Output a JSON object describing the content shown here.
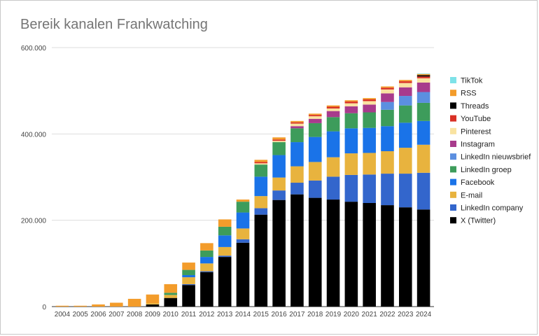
{
  "chart_data": {
    "type": "bar",
    "stacked": true,
    "title": "Bereik kanalen Frankwatching",
    "xlabel": "",
    "ylabel": "",
    "ylim": [
      0,
      600000
    ],
    "y_ticks": [
      0,
      200000,
      400000,
      600000
    ],
    "y_tick_labels": [
      "0",
      "200.000",
      "400.000",
      "600.000"
    ],
    "gridlines": true,
    "legend_position": "right",
    "categories": [
      "2004",
      "2005",
      "2006",
      "2007",
      "2008",
      "2009",
      "2010",
      "2011",
      "2012",
      "2013",
      "2014",
      "2015",
      "2016",
      "2017",
      "2018",
      "2019",
      "2020",
      "2021",
      "2022",
      "2023",
      "2024"
    ],
    "series": [
      {
        "name": "X (Twitter)",
        "color": "#000000",
        "values": [
          0,
          0,
          0,
          0,
          0,
          5000,
          20000,
          50000,
          80000,
          115000,
          148000,
          213000,
          247000,
          260000,
          252000,
          248000,
          243000,
          240000,
          235000,
          230000,
          225000
        ]
      },
      {
        "name": "LinkedIn company",
        "color": "#3366cc",
        "values": [
          0,
          0,
          0,
          0,
          0,
          0,
          0,
          2000,
          2000,
          3000,
          8000,
          15000,
          22000,
          27000,
          40000,
          53000,
          62000,
          66000,
          73000,
          78000,
          85000
        ]
      },
      {
        "name": "E-mail",
        "color": "#e8b33e",
        "values": [
          0,
          0,
          0,
          0,
          0,
          3000,
          7000,
          16000,
          18000,
          20000,
          25000,
          28000,
          30000,
          38000,
          43000,
          45000,
          50000,
          50000,
          52000,
          60000,
          65000
        ]
      },
      {
        "name": "Facebook",
        "color": "#1a73e8",
        "values": [
          0,
          0,
          0,
          0,
          0,
          0,
          0,
          5000,
          15000,
          27000,
          37000,
          45000,
          52000,
          56000,
          58000,
          60000,
          58000,
          58000,
          58000,
          58000,
          55000
        ]
      },
      {
        "name": "LinkedIn groep",
        "color": "#3d9c5b",
        "values": [
          0,
          0,
          0,
          0,
          0,
          0,
          5000,
          12000,
          15000,
          20000,
          25000,
          28000,
          30000,
          32000,
          32000,
          33000,
          35000,
          36000,
          38000,
          40000,
          42000
        ]
      },
      {
        "name": "LinkedIn nieuwsbrief",
        "color": "#5b8fe0",
        "values": [
          0,
          0,
          0,
          0,
          0,
          0,
          0,
          0,
          0,
          0,
          0,
          0,
          0,
          0,
          0,
          0,
          0,
          0,
          18000,
          22000,
          25000
        ]
      },
      {
        "name": "Instagram",
        "color": "#a83b8c",
        "values": [
          0,
          0,
          0,
          0,
          0,
          0,
          0,
          0,
          0,
          0,
          0,
          0,
          0,
          5000,
          10000,
          14000,
          16000,
          18000,
          20000,
          20000,
          22000
        ]
      },
      {
        "name": "Pinterest",
        "color": "#f9e3a1",
        "values": [
          0,
          0,
          0,
          0,
          0,
          0,
          0,
          0,
          0,
          0,
          0,
          3000,
          3000,
          6000,
          6000,
          6000,
          7000,
          8000,
          9000,
          10000,
          10000
        ]
      },
      {
        "name": "YouTube",
        "color": "#d93025",
        "values": [
          0,
          0,
          0,
          0,
          0,
          0,
          0,
          0,
          0,
          0,
          0,
          3000,
          3000,
          3000,
          3000,
          4000,
          4000,
          4000,
          4000,
          4000,
          4000
        ]
      },
      {
        "name": "Threads",
        "color": "#000000",
        "values": [
          0,
          0,
          0,
          0,
          0,
          0,
          0,
          0,
          0,
          0,
          0,
          0,
          0,
          0,
          0,
          0,
          0,
          0,
          0,
          0,
          3000
        ]
      },
      {
        "name": "RSS",
        "color": "#f39c2b",
        "values": [
          2000,
          2000,
          5000,
          9000,
          18000,
          20000,
          20000,
          17000,
          17000,
          17000,
          5000,
          5000,
          5000,
          3000,
          3000,
          3000,
          3000,
          3000,
          3000,
          3000,
          3000
        ]
      },
      {
        "name": "TikTok",
        "color": "#7ee2e8",
        "values": [
          0,
          0,
          0,
          0,
          0,
          0,
          0,
          0,
          0,
          0,
          0,
          0,
          0,
          0,
          0,
          0,
          0,
          0,
          0,
          0,
          1000
        ]
      }
    ],
    "legend_order": [
      "TikTok",
      "RSS",
      "Threads",
      "YouTube",
      "Pinterest",
      "Instagram",
      "LinkedIn nieuwsbrief",
      "LinkedIn groep",
      "Facebook",
      "E-mail",
      "LinkedIn company",
      "X (Twitter)"
    ]
  }
}
